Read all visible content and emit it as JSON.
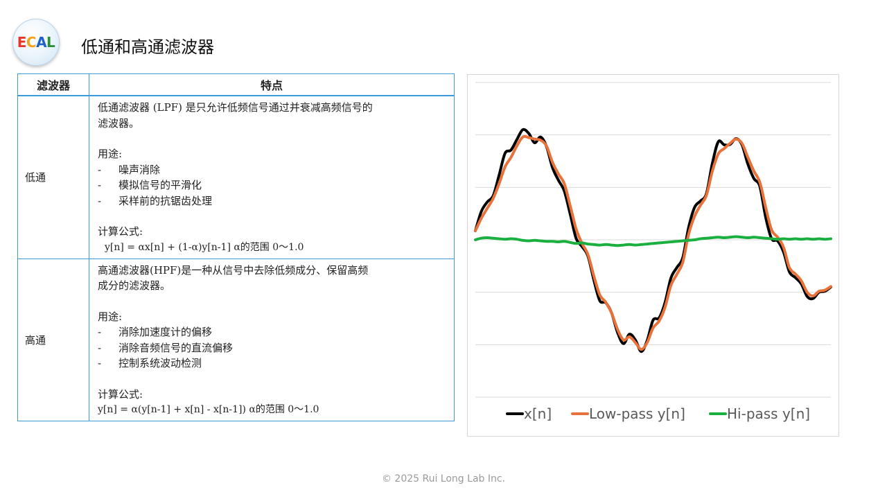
{
  "header": {
    "logo_text": "ECAL",
    "title": "低通和高通滤波器"
  },
  "table": {
    "headers": [
      "滤波器",
      "特点"
    ],
    "rows": [
      {
        "name": "低通",
        "lines": [
          {
            "kind": "text",
            "text": "低通滤波器 (LPF) 是只允许低频信号通过并衰减高频信号的"
          },
          {
            "kind": "text",
            "text": "滤波器。"
          },
          {
            "kind": "gap"
          },
          {
            "kind": "text",
            "text": "用途:"
          },
          {
            "kind": "bullet",
            "text": "噪声消除"
          },
          {
            "kind": "bullet",
            "text": "模拟信号的平滑化"
          },
          {
            "kind": "bullet",
            "text": "采样前的抗锯齿处理"
          },
          {
            "kind": "gap"
          },
          {
            "kind": "text",
            "text": "计算公式:"
          },
          {
            "kind": "formula-indent",
            "text": "y[n] = αx[n] + (1-α)y[n-1]  α的范围 0～1.0"
          }
        ]
      },
      {
        "name": "高通",
        "lines": [
          {
            "kind": "text",
            "text": "高通滤波器(HPF)是一种从信号中去除低频成分、保留高频"
          },
          {
            "kind": "text",
            "text": "成分的滤波器。"
          },
          {
            "kind": "gap"
          },
          {
            "kind": "text",
            "text": "用途:"
          },
          {
            "kind": "bullet",
            "text": "消除加速度计的偏移"
          },
          {
            "kind": "bullet",
            "text": "消除音频信号的直流偏移"
          },
          {
            "kind": "bullet",
            "text": "控制系统波动检测"
          },
          {
            "kind": "gap"
          },
          {
            "kind": "text",
            "text": "计算公式:"
          },
          {
            "kind": "formula",
            "text": "y[n] = α(y[n-1] + x[n] - x[n-1])   α的范围 0～1.0"
          }
        ]
      }
    ]
  },
  "chart_data": {
    "type": "line",
    "title": "",
    "xlabel": "",
    "ylabel": "",
    "ylim": [
      -3,
      3
    ],
    "grid": true,
    "legend_position": "bottom",
    "x": [
      0,
      1,
      2,
      3,
      4,
      5,
      6,
      7,
      8,
      9,
      10,
      11,
      12,
      13,
      14,
      15,
      16,
      17,
      18,
      19,
      20,
      21,
      22,
      23,
      24,
      25,
      26,
      27,
      28,
      29,
      30,
      31,
      32,
      33,
      34,
      35,
      36,
      37,
      38,
      39,
      40,
      41,
      42,
      43,
      44,
      45,
      46,
      47,
      48,
      49,
      50,
      51,
      52,
      53,
      54,
      55,
      56,
      57,
      58,
      59,
      60
    ],
    "series": [
      {
        "name": "x[n]",
        "color": "#000000",
        "values": [
          0.17,
          0.54,
          0.72,
          0.84,
          1.23,
          1.65,
          1.71,
          1.91,
          2.1,
          2.03,
          1.85,
          1.96,
          1.78,
          1.38,
          1.14,
          0.93,
          0.49,
          0.03,
          -0.13,
          -0.31,
          -0.77,
          -1.16,
          -1.2,
          -1.4,
          -1.77,
          -1.98,
          -1.8,
          -1.91,
          -2.13,
          -1.92,
          -1.53,
          -1.49,
          -1.2,
          -0.73,
          -0.53,
          -0.34,
          0.24,
          0.62,
          0.74,
          0.88,
          1.46,
          1.87,
          1.81,
          1.82,
          1.93,
          1.81,
          1.44,
          1.17,
          1.02,
          0.43,
          0.02,
          -0.02,
          -0.23,
          -0.61,
          -0.72,
          -0.84,
          -1.08,
          -1.12,
          -1.0,
          -0.98,
          -0.9
        ]
      },
      {
        "name": "Low-pass y[n]",
        "color": "#e8733a",
        "values": [
          0.17,
          0.41,
          0.6,
          0.79,
          1.07,
          1.39,
          1.57,
          1.79,
          1.96,
          1.95,
          1.92,
          1.9,
          1.79,
          1.48,
          1.26,
          1.07,
          0.65,
          0.21,
          -0.07,
          -0.28,
          -0.69,
          -1.05,
          -1.19,
          -1.4,
          -1.71,
          -1.91,
          -1.85,
          -1.96,
          -2.09,
          -1.96,
          -1.68,
          -1.55,
          -1.29,
          -0.87,
          -0.66,
          -0.43,
          0.11,
          0.45,
          0.66,
          0.85,
          1.31,
          1.64,
          1.74,
          1.84,
          1.92,
          1.84,
          1.57,
          1.31,
          1.1,
          0.62,
          0.19,
          0.05,
          -0.14,
          -0.53,
          -0.65,
          -0.78,
          -1.0,
          -1.07,
          -0.98,
          -0.96,
          -0.89
        ]
      },
      {
        "name": "Hi-pass y[n]",
        "color": "#1aaf3e",
        "values": [
          0.0,
          0.03,
          0.04,
          0.03,
          0.02,
          0.01,
          0.02,
          0.01,
          -0.01,
          -0.02,
          -0.01,
          -0.02,
          -0.03,
          -0.03,
          -0.04,
          -0.03,
          -0.05,
          -0.07,
          -0.06,
          -0.08,
          -0.09,
          -0.1,
          -0.09,
          -0.1,
          -0.11,
          -0.1,
          -0.09,
          -0.1,
          -0.09,
          -0.08,
          -0.07,
          -0.06,
          -0.05,
          -0.04,
          -0.03,
          -0.02,
          -0.01,
          0.0,
          0.02,
          0.03,
          0.04,
          0.05,
          0.04,
          0.05,
          0.06,
          0.05,
          0.04,
          0.05,
          0.04,
          0.03,
          0.02,
          0.01,
          0.02,
          0.01,
          0.02,
          0.01,
          0.02,
          0.01,
          0.02,
          0.01,
          0.02
        ]
      }
    ],
    "gridlines": [
      -3,
      -2,
      -1,
      0,
      1,
      2,
      3
    ]
  },
  "footer": {
    "copyright": "© 2025 Rui Long Lab Inc."
  }
}
